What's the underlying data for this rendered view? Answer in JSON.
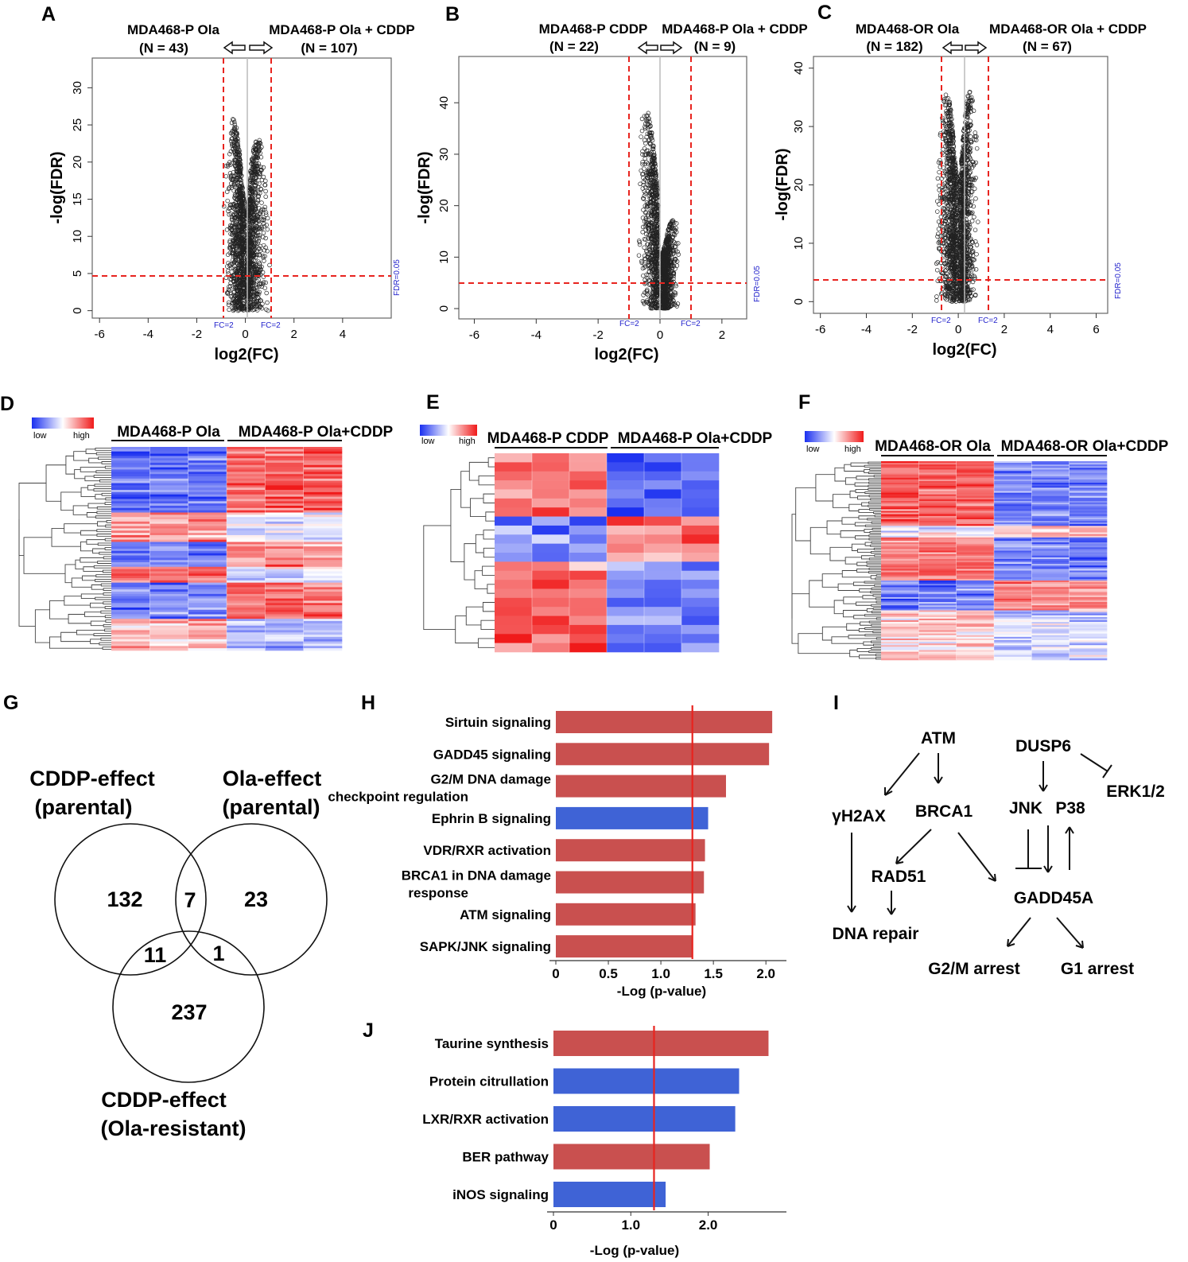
{
  "colors": {
    "red": "#c9504f",
    "blue": "#3f63d6",
    "redline": "#e8241f",
    "point_blue": "#1a2ff0",
    "hm_low": "#1a2ff0",
    "hm_high": "#f01a1a"
  },
  "panels": {
    "A": {
      "letter": "A",
      "left_title": "MDA468-P Ola",
      "left_n": "(N = 43)",
      "right_title": "MDA468-P Ola + CDDP",
      "right_n": "(N = 107)",
      "ylabel": "-log(FDR)",
      "xlabel": "log2(FC)",
      "fc_left": "FC=2",
      "fc_right": "FC=2",
      "fdr_tag": "FDR=0.05",
      "xticks": [
        "-6",
        "-4",
        "-2",
        "0",
        "2",
        "4"
      ],
      "yticks": [
        "0",
        "5",
        "10",
        "15",
        "20",
        "25",
        "30"
      ]
    },
    "B": {
      "letter": "B",
      "left_title": "MDA468-P CDDP",
      "left_n": "(N = 22)",
      "right_title": "MDA468-P Ola + CDDP",
      "right_n": "(N = 9)",
      "ylabel": "-log(FDR)",
      "xlabel": "log2(FC)",
      "fc_left": "FC=2",
      "fc_right": "FC=2",
      "fdr_tag": "FDR=0.05",
      "xticks": [
        "-6",
        "-4",
        "-2",
        "0",
        "2"
      ],
      "yticks": [
        "0",
        "10",
        "20",
        "30",
        "40"
      ]
    },
    "C": {
      "letter": "C",
      "left_title": "MDA468-OR Ola",
      "left_n": "(N = 182)",
      "right_title": "MDA468-OR Ola + CDDP",
      "right_n": "(N = 67)",
      "ylabel": "-log(FDR)",
      "xlabel": "log2(FC)",
      "fc_left": "FC=2",
      "fc_right": "FC=2",
      "fdr_tag": "FDR=0.05",
      "xticks": [
        "-6",
        "-4",
        "-2",
        "0",
        "2",
        "4",
        "6"
      ],
      "yticks": [
        "0",
        "10",
        "20",
        "30",
        "40"
      ]
    },
    "D": {
      "letter": "D",
      "legend_low": "low",
      "legend_high": "high",
      "group1": "MDA468-P Ola",
      "group2": "MDA468-P Ola+CDDP"
    },
    "E": {
      "letter": "E",
      "legend_low": "low",
      "legend_high": "high",
      "group1": "MDA468-P CDDP",
      "group2": "MDA468-P Ola+CDDP"
    },
    "F": {
      "letter": "F",
      "legend_low": "low",
      "legend_high": "high",
      "group1": "MDA468-OR Ola",
      "group2": "MDA468-OR Ola+CDDP"
    },
    "G": {
      "letter": "G",
      "set1_line1": "CDDP-effect",
      "set1_line2": "(parental)",
      "set2_line1": "Ola-effect",
      "set2_line2": "(parental)",
      "set3_line1": "CDDP-effect",
      "set3_line2": "(Ola-resistant)",
      "counts": {
        "only1": "132",
        "only2": "23",
        "only3": "237",
        "s12": "7",
        "s13": "11",
        "s23": "1"
      }
    },
    "H": {
      "letter": "H",
      "xlabel": "-Log  (p-value)",
      "xticks": [
        "0",
        "0.5",
        "1.0",
        "1.5",
        "2.0"
      ]
    },
    "I": {
      "letter": "I",
      "nodes": {
        "atm": "ATM",
        "dusp6": "DUSP6",
        "erk": "ERK1/2",
        "h2ax": "γH2AX",
        "brca1": "BRCA1",
        "jnk": "JNK",
        "p38": "P38",
        "rad51": "RAD51",
        "gadd45a": "GADD45A",
        "dna_repair": "DNA repair",
        "g2m": "G2/M arrest",
        "g1": "G1 arrest"
      }
    },
    "J": {
      "letter": "J",
      "xlabel": "-Log  (p-value)",
      "xticks": [
        "0",
        "1.0",
        "2.0"
      ]
    }
  },
  "chart_data": [
    {
      "id": "H",
      "type": "bar",
      "orientation": "horizontal",
      "title": "",
      "xlabel": "-Log  (p-value)",
      "ylabel": "",
      "categories": [
        "Sirtuin signaling",
        "GADD45 signaling",
        "G2/M DNA damage checkpoint regulation",
        "Ephrin B signaling",
        "VDR/RXR activation",
        "BRCA1 in DNA damage response",
        "ATM signaling",
        "SAPK/JNK signaling"
      ],
      "labels_line1": [
        "Sirtuin signaling",
        "GADD45 signaling",
        "G2/M DNA damage",
        "Ephrin B signaling",
        "VDR/RXR activation",
        "BRCA1 in DNA damage",
        "ATM signaling",
        "SAPK/JNK signaling"
      ],
      "labels_line2": [
        "",
        "",
        "checkpoint regulation",
        "",
        "",
        "response",
        "",
        ""
      ],
      "values": [
        2.06,
        2.03,
        1.62,
        1.45,
        1.42,
        1.41,
        1.33,
        1.3
      ],
      "colors": [
        "red",
        "red",
        "red",
        "blue",
        "red",
        "red",
        "red",
        "red"
      ],
      "threshold": 1.3,
      "xlim": [
        0,
        2.15
      ]
    },
    {
      "id": "J",
      "type": "bar",
      "orientation": "horizontal",
      "title": "",
      "xlabel": "-Log  (p-value)",
      "ylabel": "",
      "categories": [
        "Taurine synthesis",
        "Protein citrullation",
        "LXR/RXR activation",
        "BER pathway",
        "iNOS signaling"
      ],
      "labels_line1": [
        "Taurine synthesis",
        "Protein citrullation",
        "LXR/RXR activation",
        "BER pathway",
        "iNOS signaling"
      ],
      "labels_line2": [
        "",
        "",
        "",
        "",
        ""
      ],
      "values": [
        2.78,
        2.4,
        2.35,
        2.02,
        1.45
      ],
      "colors": [
        "red",
        "blue",
        "blue",
        "red",
        "blue"
      ],
      "threshold": 1.3,
      "xlim": [
        0,
        2.95
      ]
    }
  ]
}
